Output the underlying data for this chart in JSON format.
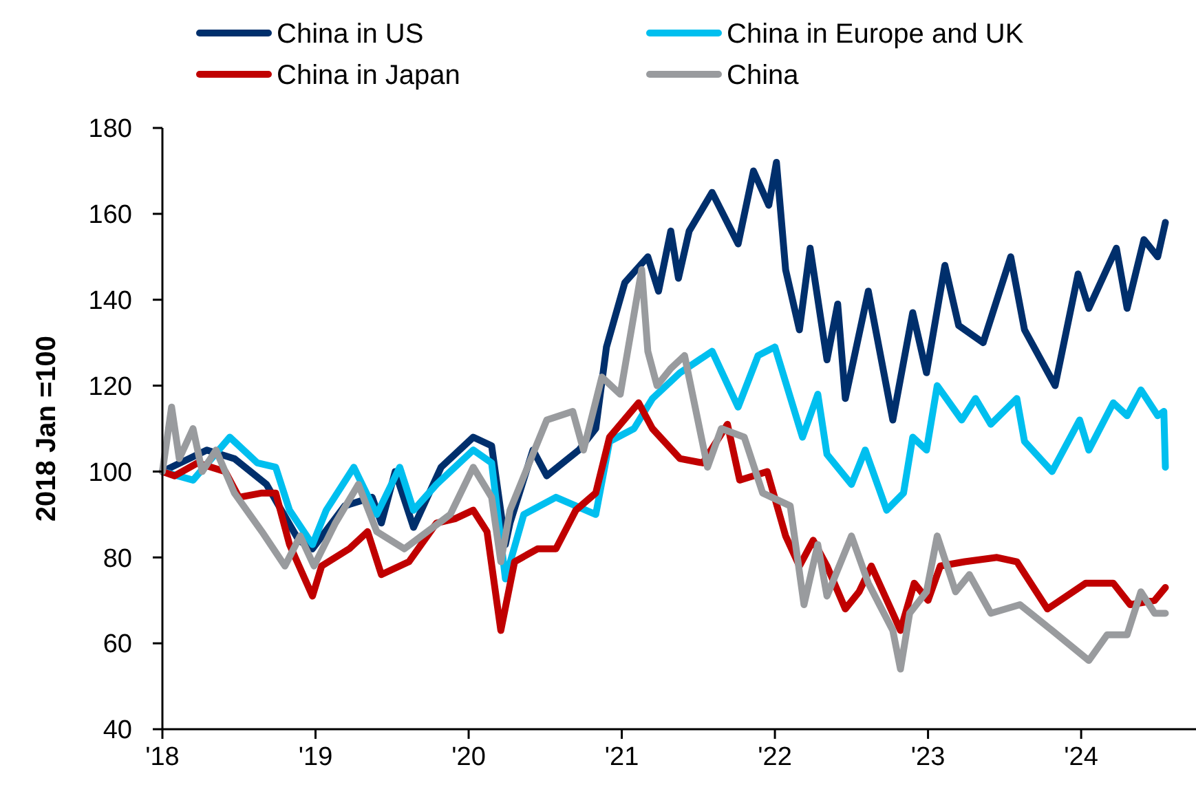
{
  "chart_data": {
    "type": "line",
    "ylabel": "2018 Jan =100",
    "xlim": [
      2018,
      2024.75
    ],
    "xticks": [
      {
        "value": 2018,
        "label": "'18"
      },
      {
        "value": 2019,
        "label": "'19"
      },
      {
        "value": 2020,
        "label": "'20"
      },
      {
        "value": 2021,
        "label": "'21"
      },
      {
        "value": 2022,
        "label": "'22"
      },
      {
        "value": 2023,
        "label": "'23"
      },
      {
        "value": 2024,
        "label": "'24"
      }
    ],
    "ylim": [
      40,
      180
    ],
    "yticks": [
      40,
      60,
      80,
      100,
      120,
      140,
      160,
      180
    ],
    "grid": false,
    "legend": "top",
    "marker": "none",
    "line_style": "solid",
    "series": [
      {
        "name": "China in US",
        "color": "#002f6c",
        "x": [
          2018.0,
          2018.29,
          2018.47,
          2018.68,
          2018.89,
          2018.98,
          2019.19,
          2019.37,
          2019.43,
          2019.52,
          2019.64,
          2019.82,
          2020.03,
          2020.15,
          2020.24,
          2020.27,
          2020.42,
          2020.51,
          2020.72,
          2020.83,
          2020.9,
          2021.02,
          2021.17,
          2021.24,
          2021.32,
          2021.37,
          2021.44,
          2021.59,
          2021.76,
          2021.86,
          2021.96,
          2022.01,
          2022.07,
          2022.16,
          2022.23,
          2022.34,
          2022.41,
          2022.46,
          2022.61,
          2022.77,
          2022.9,
          2022.99,
          2023.11,
          2023.2,
          2023.36,
          2023.54,
          2023.63,
          2023.83,
          2023.98,
          2024.05,
          2024.23,
          2024.3,
          2024.41,
          2024.5,
          2024.55
        ],
        "values": [
          100,
          105,
          103,
          97,
          84,
          82,
          92,
          94,
          88,
          100,
          87,
          101,
          108,
          106,
          83,
          88,
          105,
          99,
          105,
          110,
          129,
          144,
          150,
          142,
          156,
          145,
          156,
          165,
          153,
          170,
          162,
          172,
          147,
          133,
          152,
          126,
          139,
          117,
          142,
          112,
          137,
          123,
          148,
          134,
          130,
          150,
          133,
          120,
          146,
          138,
          152,
          138,
          154,
          150,
          158
        ]
      },
      {
        "name": "China in Europe and UK",
        "color": "#00bfef",
        "x": [
          2018.0,
          2018.2,
          2018.44,
          2018.62,
          2018.74,
          2018.83,
          2018.98,
          2019.07,
          2019.25,
          2019.4,
          2019.55,
          2019.64,
          2019.79,
          2020.03,
          2020.15,
          2020.24,
          2020.36,
          2020.57,
          2020.83,
          2020.92,
          2021.08,
          2021.2,
          2021.38,
          2021.59,
          2021.76,
          2021.89,
          2022.0,
          2022.18,
          2022.28,
          2022.34,
          2022.5,
          2022.59,
          2022.73,
          2022.84,
          2022.9,
          2022.99,
          2023.06,
          2023.22,
          2023.31,
          2023.41,
          2023.58,
          2023.63,
          2023.81,
          2023.99,
          2024.05,
          2024.21,
          2024.3,
          2024.39,
          2024.5,
          2024.54,
          2024.55
        ],
        "values": [
          100,
          98,
          108,
          102,
          101,
          91,
          83,
          91,
          101,
          90,
          101,
          91,
          97,
          105,
          102,
          75,
          90,
          94,
          90,
          107,
          110,
          117,
          123,
          128,
          115,
          127,
          129,
          108,
          118,
          104,
          97,
          105,
          91,
          95,
          108,
          105,
          120,
          112,
          117,
          111,
          117,
          107,
          100,
          112,
          105,
          116,
          113,
          119,
          113,
          114,
          101
        ]
      },
      {
        "name": "China in Japan",
        "color": "#c00000",
        "x": [
          2018.0,
          2018.08,
          2018.23,
          2018.41,
          2018.5,
          2018.65,
          2018.74,
          2018.83,
          2018.98,
          2019.04,
          2019.22,
          2019.34,
          2019.43,
          2019.61,
          2019.79,
          2019.91,
          2020.03,
          2020.12,
          2020.21,
          2020.3,
          2020.45,
          2020.57,
          2020.7,
          2020.83,
          2020.92,
          2021.11,
          2021.2,
          2021.38,
          2021.53,
          2021.69,
          2021.77,
          2021.95,
          2022.07,
          2022.16,
          2022.25,
          2022.34,
          2022.46,
          2022.55,
          2022.63,
          2022.77,
          2022.82,
          2022.91,
          2023.0,
          2023.08,
          2023.24,
          2023.45,
          2023.58,
          2023.78,
          2024.03,
          2024.21,
          2024.32,
          2024.48,
          2024.55
        ],
        "values": [
          100,
          99,
          102,
          100,
          94,
          95,
          95,
          83,
          71,
          78,
          82,
          86,
          76,
          79,
          88,
          89,
          91,
          86,
          63,
          79,
          82,
          82,
          91,
          95,
          108,
          116,
          110,
          103,
          102,
          111,
          98,
          100,
          85,
          78,
          84,
          78,
          68,
          72,
          78,
          67,
          63,
          74,
          70,
          78,
          79,
          80,
          79,
          68,
          74,
          74,
          69,
          70,
          73
        ]
      },
      {
        "name": "China",
        "color": "#999b9e",
        "x": [
          2018.0,
          2018.06,
          2018.11,
          2018.2,
          2018.26,
          2018.35,
          2018.47,
          2018.65,
          2018.8,
          2018.9,
          2018.99,
          2019.13,
          2019.28,
          2019.4,
          2019.58,
          2019.73,
          2019.88,
          2020.03,
          2020.15,
          2020.21,
          2020.27,
          2020.51,
          2020.68,
          2020.75,
          2020.87,
          2020.99,
          2021.13,
          2021.17,
          2021.23,
          2021.32,
          2021.41,
          2021.56,
          2021.65,
          2021.8,
          2021.92,
          2022.1,
          2022.19,
          2022.28,
          2022.34,
          2022.5,
          2022.61,
          2022.77,
          2022.82,
          2022.88,
          2022.99,
          2023.06,
          2023.18,
          2023.27,
          2023.41,
          2023.6,
          2023.81,
          2024.05,
          2024.17,
          2024.3,
          2024.39,
          2024.48,
          2024.55
        ],
        "values": [
          100,
          115,
          103,
          110,
          100,
          105,
          95,
          86,
          78,
          85,
          78,
          88,
          97,
          86,
          82,
          86,
          90,
          101,
          94,
          79,
          91,
          112,
          114,
          105,
          122,
          118,
          147,
          128,
          120,
          124,
          127,
          101,
          110,
          108,
          95,
          92,
          69,
          83,
          71,
          85,
          74,
          63,
          54,
          67,
          72,
          85,
          72,
          76,
          67,
          69,
          63,
          56,
          62,
          62,
          72,
          67,
          67
        ]
      }
    ]
  }
}
